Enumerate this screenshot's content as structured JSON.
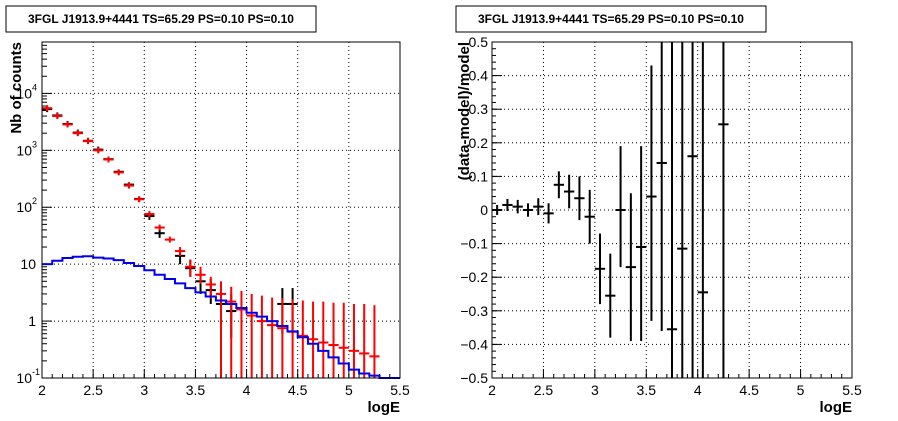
{
  "chart_data": [
    {
      "type": "scatter",
      "title": "3FGL J1913.9+4441 TS=65.29 PS=0.10 PS=0.10",
      "xlabel": "logE",
      "ylabel": "Nb of counts",
      "xlim": [
        2,
        5.5
      ],
      "ylim": [
        0.1,
        80000
      ],
      "yscale": "log",
      "grid": true,
      "xticks": [
        "2",
        "2.5",
        "3",
        "3.5",
        "4",
        "4.5",
        "5",
        "5.5"
      ],
      "yticks": [
        {
          "base": "10",
          "exp": "-1",
          "value": 0.1
        },
        {
          "base": "1",
          "exp": "",
          "value": 1
        },
        {
          "base": "10",
          "exp": "",
          "value": 10
        },
        {
          "base": "10",
          "exp": "2",
          "value": 100
        },
        {
          "base": "10",
          "exp": "3",
          "value": 1000
        },
        {
          "base": "10",
          "exp": "4",
          "value": 10000
        }
      ],
      "bin_width": 0.1,
      "series": [
        {
          "color": "#000000",
          "points": [
            {
              "x": 2.05,
              "y": 5300
            },
            {
              "x": 2.15,
              "y": 4100
            },
            {
              "x": 2.25,
              "y": 2900
            },
            {
              "x": 2.35,
              "y": 2050
            },
            {
              "x": 2.45,
              "y": 1470
            },
            {
              "x": 2.55,
              "y": 1030
            },
            {
              "x": 2.65,
              "y": 700,
              "ylo": 640,
              "yhi": 760
            },
            {
              "x": 2.75,
              "y": 420,
              "ylo": 380,
              "yhi": 460
            },
            {
              "x": 2.85,
              "y": 250,
              "ylo": 225,
              "yhi": 275
            },
            {
              "x": 2.95,
              "y": 140,
              "ylo": 125,
              "yhi": 155
            },
            {
              "x": 3.05,
              "y": 70,
              "ylo": 60,
              "yhi": 80
            },
            {
              "x": 3.15,
              "y": 35,
              "ylo": 29,
              "yhi": 42
            },
            {
              "x": 3.35,
              "y": 14,
              "ylo": 10,
              "yhi": 18
            },
            {
              "x": 3.45,
              "y": 8.5,
              "ylo": 6,
              "yhi": 12
            },
            {
              "x": 3.55,
              "y": 5,
              "ylo": 3,
              "yhi": 7.5
            },
            {
              "x": 3.65,
              "y": 3.5,
              "ylo": 2,
              "yhi": 5.5
            },
            {
              "x": 3.75,
              "y": 2,
              "ylo": 0.6,
              "yhi": 3.8
            },
            {
              "x": 3.85,
              "y": 1.5,
              "ylo": 0.5,
              "yhi": 3
            },
            {
              "x": 4.35,
              "y": 2,
              "ylo": 0.6,
              "yhi": 3.8
            },
            {
              "x": 4.45,
              "y": 2,
              "ylo": 0.6,
              "yhi": 3.8
            }
          ]
        },
        {
          "color": "#ff0000",
          "points": [
            {
              "x": 2.05,
              "y": 5500
            },
            {
              "x": 2.15,
              "y": 4000
            },
            {
              "x": 2.25,
              "y": 2850
            },
            {
              "x": 2.35,
              "y": 2000
            },
            {
              "x": 2.45,
              "y": 1450
            },
            {
              "x": 2.55,
              "y": 1000
            },
            {
              "x": 2.65,
              "y": 690
            },
            {
              "x": 2.75,
              "y": 410
            },
            {
              "x": 2.85,
              "y": 240
            },
            {
              "x": 2.95,
              "y": 138
            },
            {
              "x": 3.05,
              "y": 76
            },
            {
              "x": 3.15,
              "y": 44
            },
            {
              "x": 3.25,
              "y": 27
            },
            {
              "x": 3.35,
              "y": 17,
              "ylo": 14,
              "yhi": 20
            },
            {
              "x": 3.45,
              "y": 9,
              "ylo": 6,
              "yhi": 12
            },
            {
              "x": 3.55,
              "y": 6.5,
              "ylo": 4.5,
              "yhi": 9
            },
            {
              "x": 3.65,
              "y": 4.4,
              "ylo": 2.5,
              "yhi": 6
            },
            {
              "x": 3.75,
              "y": 3,
              "ylo": 0.1,
              "yhi": 5
            },
            {
              "x": 3.85,
              "y": 2.2,
              "ylo": 0.1,
              "yhi": 4
            },
            {
              "x": 3.95,
              "y": 1.6,
              "ylo": 0.1,
              "yhi": 3.4
            },
            {
              "x": 4.05,
              "y": 1.25,
              "ylo": 0.1,
              "yhi": 3
            },
            {
              "x": 4.15,
              "y": 1,
              "ylo": 0.1,
              "yhi": 2.8
            },
            {
              "x": 4.25,
              "y": 0.85,
              "ylo": 0.1,
              "yhi": 2.6
            },
            {
              "x": 4.35,
              "y": 0.75,
              "ylo": 0.1,
              "yhi": 2.5
            },
            {
              "x": 4.45,
              "y": 0.65,
              "ylo": 0.1,
              "yhi": 2.4
            },
            {
              "x": 4.55,
              "y": 0.55,
              "ylo": 0.1,
              "yhi": 2.3
            },
            {
              "x": 4.65,
              "y": 0.48,
              "ylo": 0.1,
              "yhi": 2.2
            },
            {
              "x": 4.75,
              "y": 0.42,
              "ylo": 0.1,
              "yhi": 2.2
            },
            {
              "x": 4.85,
              "y": 0.38,
              "ylo": 0.1,
              "yhi": 2.1
            },
            {
              "x": 4.95,
              "y": 0.34,
              "ylo": 0.1,
              "yhi": 2.1
            },
            {
              "x": 5.05,
              "y": 0.3,
              "ylo": 0.1,
              "yhi": 2
            },
            {
              "x": 5.15,
              "y": 0.27,
              "ylo": 0.1,
              "yhi": 2
            },
            {
              "x": 5.25,
              "y": 0.24,
              "ylo": 0.1,
              "yhi": 1.9
            }
          ]
        },
        {
          "color": "#0000ee",
          "step": true,
          "x": [
            2.0,
            2.1,
            2.2,
            2.3,
            2.4,
            2.5,
            2.6,
            2.7,
            2.8,
            2.9,
            3.0,
            3.1,
            3.2,
            3.3,
            3.4,
            3.5,
            3.6,
            3.7,
            3.8,
            3.9,
            4.0,
            4.1,
            4.2,
            4.3,
            4.4,
            4.5,
            4.6,
            4.7,
            4.8,
            4.9,
            5.0,
            5.1,
            5.2,
            5.3,
            5.4
          ],
          "values": [
            10,
            11.5,
            12.8,
            13.5,
            13.8,
            13,
            12.6,
            11.8,
            10.5,
            9.3,
            7.8,
            6.5,
            5.5,
            4.6,
            3.8,
            3.2,
            2.7,
            2.3,
            2,
            1.7,
            1.4,
            1.2,
            1,
            0.82,
            0.66,
            0.52,
            0.4,
            0.3,
            0.23,
            0.18,
            0.14,
            0.12,
            0.11,
            0.1,
            0.1
          ]
        }
      ]
    },
    {
      "type": "scatter",
      "title": "3FGL J1913.9+4441 TS=65.29 PS=0.10 PS=0.10",
      "xlabel": "logE",
      "ylabel": "(data-model)/model",
      "xlim": [
        2,
        5.5
      ],
      "ylim": [
        -0.5,
        0.5
      ],
      "grid": true,
      "xticks": [
        "2",
        "2.5",
        "3",
        "3.5",
        "4",
        "4.5",
        "5",
        "5.5"
      ],
      "yticks": [
        "−0.5",
        "−0.4",
        "−0.3",
        "−0.2",
        "−0.1",
        "0",
        "0.1",
        "0.2",
        "0.3",
        "0.4",
        "0.5"
      ],
      "bin_width": 0.1,
      "series": [
        {
          "color": "#000000",
          "points": [
            {
              "x": 2.05,
              "y": 0.0,
              "ylo": -0.015,
              "yhi": 0.015
            },
            {
              "x": 2.15,
              "y": 0.015,
              "ylo": -0.003,
              "yhi": 0.033
            },
            {
              "x": 2.25,
              "y": 0.01,
              "ylo": -0.01,
              "yhi": 0.03
            },
            {
              "x": 2.35,
              "y": 0.0,
              "ylo": -0.02,
              "yhi": 0.02
            },
            {
              "x": 2.45,
              "y": 0.01,
              "ylo": -0.015,
              "yhi": 0.035
            },
            {
              "x": 2.55,
              "y": -0.01,
              "ylo": -0.04,
              "yhi": 0.02
            },
            {
              "x": 2.65,
              "y": 0.075,
              "ylo": 0.035,
              "yhi": 0.115
            },
            {
              "x": 2.75,
              "y": 0.055,
              "ylo": 0.005,
              "yhi": 0.105
            },
            {
              "x": 2.85,
              "y": 0.035,
              "ylo": -0.03,
              "yhi": 0.1
            },
            {
              "x": 2.95,
              "y": -0.02,
              "ylo": -0.1,
              "yhi": 0.06
            },
            {
              "x": 3.05,
              "y": -0.175,
              "ylo": -0.28,
              "yhi": -0.07
            },
            {
              "x": 3.15,
              "y": -0.255,
              "ylo": -0.38,
              "yhi": -0.13
            },
            {
              "x": 3.25,
              "y": 0.0,
              "ylo": -0.17,
              "yhi": 0.19
            },
            {
              "x": 3.35,
              "y": -0.17,
              "ylo": -0.39,
              "yhi": 0.05
            },
            {
              "x": 3.45,
              "y": -0.11,
              "ylo": -0.39,
              "yhi": 0.19
            },
            {
              "x": 3.55,
              "y": 0.04,
              "ylo": -0.33,
              "yhi": 0.43
            },
            {
              "x": 3.65,
              "y": 0.14,
              "ylo": -0.36,
              "yhi": 0.65
            },
            {
              "x": 3.75,
              "y": -0.355,
              "ylo": -0.6,
              "yhi": 0.6
            },
            {
              "x": 3.85,
              "y": -0.115,
              "ylo": -0.6,
              "yhi": 0.6
            },
            {
              "x": 3.95,
              "y": 0.16,
              "ylo": -0.6,
              "yhi": 0.6
            },
            {
              "x": 4.05,
              "y": -0.245,
              "ylo": -0.6,
              "yhi": 0.6
            },
            {
              "x": 4.25,
              "y": 0.255,
              "ylo": -0.6,
              "yhi": 0.6
            }
          ]
        }
      ]
    }
  ]
}
